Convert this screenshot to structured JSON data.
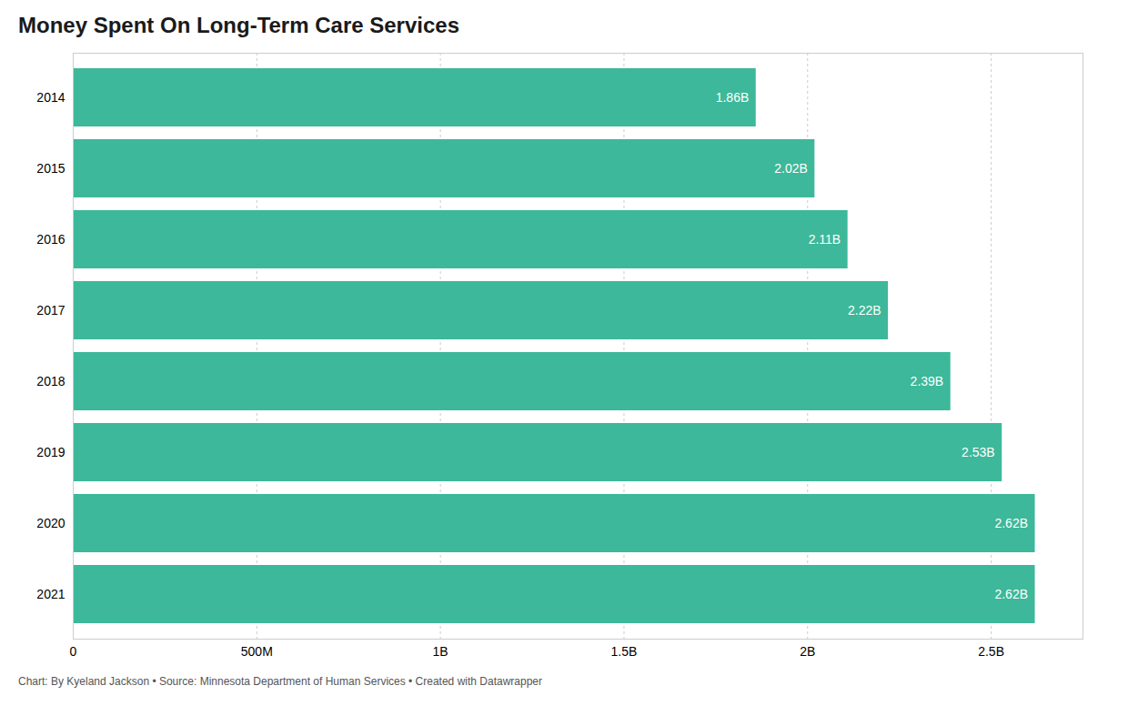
{
  "chart_data": {
    "type": "bar",
    "orientation": "horizontal",
    "title": "Money Spent On Long-Term Care Services",
    "caption": "Chart: By Kyeland Jackson • Source: Minnesota Department of Human Services • Created with Datawrapper",
    "categories": [
      "2014",
      "2015",
      "2016",
      "2017",
      "2018",
      "2019",
      "2020",
      "2021"
    ],
    "values": [
      1.86,
      2.02,
      2.11,
      2.22,
      2.39,
      2.53,
      2.62,
      2.62
    ],
    "value_labels": [
      "1.86B",
      "2.02B",
      "2.11B",
      "2.22B",
      "2.39B",
      "2.53B",
      "2.62B",
      "2.62B"
    ],
    "data_labels": true,
    "color": "#3db89a",
    "xlim": [
      0,
      2.75
    ],
    "xticks": [
      0,
      {
        "value": 0.5,
        "label": "500M"
      },
      {
        "value": 1.0,
        "label": "1B"
      },
      {
        "value": 1.5,
        "label": "1.5B"
      },
      {
        "value": 2.0,
        "label": "2B"
      },
      {
        "value": 2.5,
        "label": "2.5B"
      }
    ],
    "grid": true
  }
}
